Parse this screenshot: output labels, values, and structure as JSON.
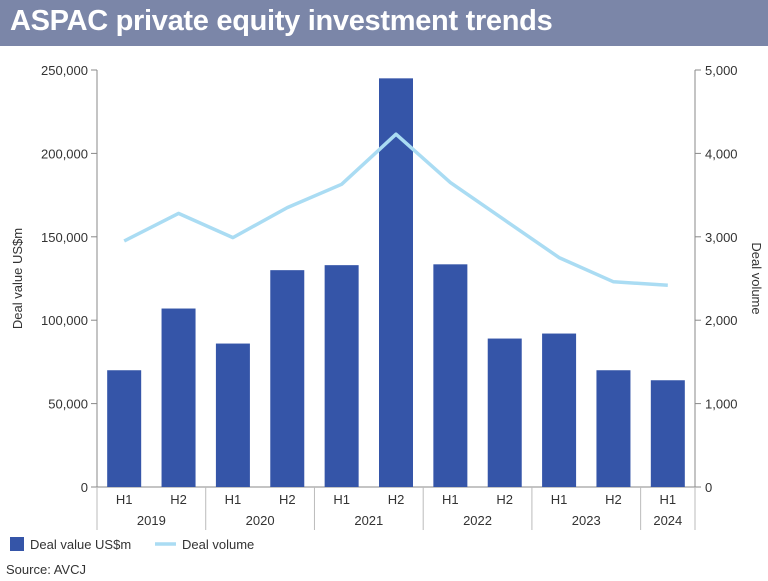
{
  "title": "ASPAC private equity investment trends",
  "source": "Source: AVCJ",
  "chart_data": {
    "type": "bar",
    "categories": [
      "H1",
      "H2",
      "H1",
      "H2",
      "H1",
      "H2",
      "H1",
      "H2",
      "H1",
      "H2",
      "H1"
    ],
    "groups": [
      "2019",
      "2020",
      "2021",
      "2022",
      "2023",
      "2024"
    ],
    "group_of_category": [
      0,
      0,
      1,
      1,
      2,
      2,
      3,
      3,
      4,
      4,
      5
    ],
    "series": [
      {
        "name": "Deal value US$m",
        "type": "bar",
        "axis": "left",
        "color": "#3555a8",
        "values": [
          70000,
          107000,
          86000,
          130000,
          133000,
          245000,
          133500,
          89000,
          92000,
          70000,
          64000
        ]
      },
      {
        "name": "Deal volume",
        "type": "line",
        "axis": "right",
        "color": "#aadcf3",
        "values": [
          2950,
          3280,
          2990,
          3350,
          3630,
          4230,
          3650,
          3200,
          2750,
          2460,
          2420
        ]
      }
    ],
    "ylabel_left": "Deal value US$m",
    "ylabel_right": "Deal volume",
    "ylim_left": [
      0,
      250000
    ],
    "ylim_right": [
      0,
      5000
    ],
    "yticks_left": [
      "0",
      "50,000",
      "100,000",
      "150,000",
      "200,000",
      "250,000"
    ],
    "yticks_right": [
      "0",
      "1,000",
      "2,000",
      "3,000",
      "4,000",
      "5,000"
    ],
    "grid": false,
    "legend_position": "bottom-left"
  }
}
